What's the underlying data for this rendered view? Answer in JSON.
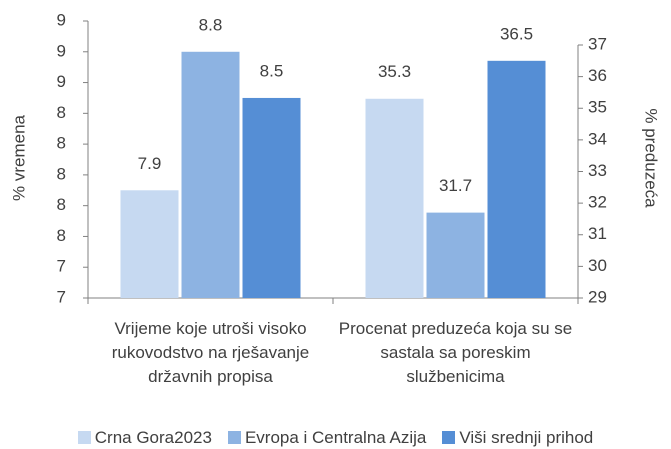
{
  "chart_data": {
    "type": "bar",
    "categories": [
      "Vrijeme koje utroši visoko rukovodstvo na rješavanje državnih propisa",
      "Procenat preduzeća koja su se sastala sa poreskim službenicima"
    ],
    "category_axis": [
      "y",
      "y2"
    ],
    "series": [
      {
        "name": "Crna Gora2023",
        "color": "#c6d9f1",
        "values": [
          7.9,
          35.3
        ]
      },
      {
        "name": "Evropa i Centralna Azija",
        "color": "#8db3e2",
        "values": [
          8.8,
          31.7
        ]
      },
      {
        "name": "Viši srednji prihod",
        "color": "#558ed5",
        "values": [
          8.5,
          36.5
        ]
      }
    ],
    "ylabel": "% vremena",
    "y2label": "% preduzeća",
    "ylim": [
      7.2,
      9.0
    ],
    "yticks": [
      {
        "value": 7.2,
        "label": "7"
      },
      {
        "value": 7.4,
        "label": "7"
      },
      {
        "value": 7.6,
        "label": "8"
      },
      {
        "value": 7.8,
        "label": "8"
      },
      {
        "value": 8.0,
        "label": "8"
      },
      {
        "value": 8.2,
        "label": "8"
      },
      {
        "value": 8.4,
        "label": "8"
      },
      {
        "value": 8.6,
        "label": "9"
      },
      {
        "value": 8.8,
        "label": "9"
      },
      {
        "value": 9.0,
        "label": "9"
      }
    ],
    "y2lim": [
      29,
      37
    ],
    "y2ticks": [
      29,
      30,
      31,
      32,
      33,
      34,
      35,
      36,
      37
    ],
    "legend": "bottom"
  }
}
